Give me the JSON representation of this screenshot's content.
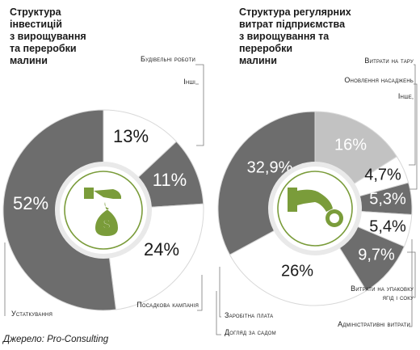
{
  "chart_data": [
    {
      "type": "pie",
      "title": "Структура\nінвестицій\nз вирощування\nта переробки\nмалини",
      "slices": [
        {
          "label": "Інші",
          "value": 13,
          "display": "13%",
          "color": "#ffffff"
        },
        {
          "label": "Будівельні роботи",
          "value": 11,
          "display": "11%",
          "color": "#6d6d6d"
        },
        {
          "label": "Посадкова кампанія",
          "value": 24,
          "display": "24%",
          "color": "#ffffff"
        },
        {
          "label": "Устаткування",
          "value": 52,
          "display": "52%",
          "color": "#6d6d6d"
        }
      ],
      "icon": "money-bag-hand-icon"
    },
    {
      "type": "pie",
      "title": "Структура регулярних\nвитрат підприємства\nз вирощування та\nпереробки\nмалини",
      "slices": [
        {
          "label": "Інше",
          "value": 16,
          "display": "16%",
          "color": "#c2c2c2"
        },
        {
          "label": "Витрати на тару",
          "value": 4.7,
          "display": "4,7%",
          "color": "#ffffff"
        },
        {
          "label": "Оновлення насаджень",
          "value": 5.3,
          "display": "5,3%",
          "color": "#6d6d6d"
        },
        {
          "label": "Адміністративні витрати",
          "value": 5.4,
          "display": "5,4%",
          "color": "#ffffff"
        },
        {
          "label": "Витрати на упаковку ягід і соку",
          "value": 9.7,
          "display": "9,7%",
          "color": "#6d6d6d"
        },
        {
          "label": "Догляд за садом",
          "value": 26,
          "display": "26%",
          "color": "#ffffff"
        },
        {
          "label": "Заробітна плата",
          "value": 32.9,
          "display": "32,9%",
          "color": "#6d6d6d"
        }
      ],
      "icon": "hand-coin-icon"
    }
  ],
  "source": "Джерело: Pro-Consulting",
  "colors": {
    "accent": "#7a9c3a",
    "dark": "#6d6d6d",
    "light": "#c2c2c2",
    "ring": "#e9e9e9"
  }
}
